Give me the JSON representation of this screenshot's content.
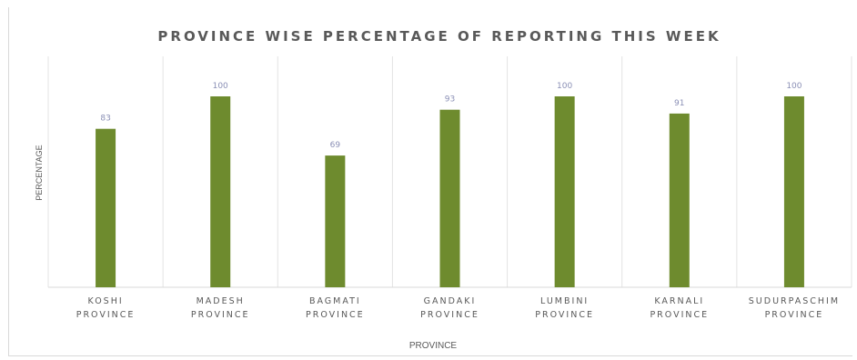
{
  "chart_data": {
    "type": "bar",
    "title": "PROVINCE WISE PERCENTAGE OF REPORTING THIS WEEK",
    "xlabel": "PROVINCE",
    "ylabel": "PERCENTAGE",
    "categories": [
      [
        "KOSHI",
        "PROVINCE"
      ],
      [
        "MADESH",
        "PROVINCE"
      ],
      [
        "BAGMATI",
        "PROVINCE"
      ],
      [
        "GANDAKI",
        "PROVINCE"
      ],
      [
        "LUMBINI",
        "PROVINCE"
      ],
      [
        "KARNALI",
        "PROVINCE"
      ],
      [
        "SUDURPASCHIM",
        "PROVINCE"
      ]
    ],
    "values": [
      83,
      100,
      69,
      93,
      100,
      91,
      100
    ],
    "ylim": [
      0,
      100
    ],
    "bar_color": "#6e8b2e",
    "grid": "vertical category separators",
    "legend": "none"
  }
}
